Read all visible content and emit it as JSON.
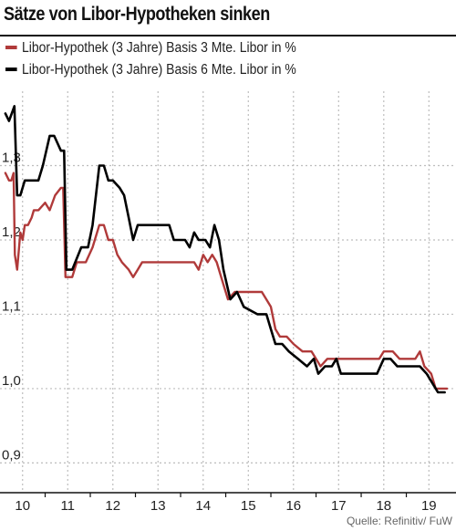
{
  "title": "Sätze von Libor-Hypotheken sinken",
  "source": "Quelle: Refinitiv/ FuW",
  "colors": {
    "series_3m": "#b03a3a",
    "series_6m": "#000000",
    "grid": "#bdbdbd",
    "axis": "#111111"
  },
  "chart_data": {
    "type": "line",
    "title": "Sätze von Libor-Hypotheken sinken",
    "xlabel": "",
    "ylabel": "",
    "xlim": [
      9.5,
      19.6
    ],
    "ylim": [
      0.86,
      1.4
    ],
    "x_ticks": [
      10,
      11,
      12,
      13,
      14,
      15,
      16,
      17,
      18,
      19
    ],
    "x_tick_labels": [
      "10",
      "11",
      "12",
      "13",
      "14",
      "15",
      "16",
      "17",
      "18",
      "19"
    ],
    "y_ticks": [
      0.9,
      1.0,
      1.1,
      1.2,
      1.3
    ],
    "y_tick_labels": [
      "0,9",
      "1,0",
      "1,1",
      "1,2",
      "1,3"
    ],
    "grid": true,
    "legend_position": "top-left",
    "series": [
      {
        "name": "Libor-Hypothek (3 Jahre) Basis 3 Mte. Libor in %",
        "color": "#b03a3a",
        "points": [
          [
            9.62,
            1.29
          ],
          [
            9.7,
            1.28
          ],
          [
            9.75,
            1.28
          ],
          [
            9.8,
            1.29
          ],
          [
            9.83,
            1.18
          ],
          [
            9.88,
            1.16
          ],
          [
            9.95,
            1.21
          ],
          [
            10.0,
            1.2
          ],
          [
            10.05,
            1.22
          ],
          [
            10.12,
            1.22
          ],
          [
            10.2,
            1.23
          ],
          [
            10.25,
            1.24
          ],
          [
            10.35,
            1.24
          ],
          [
            10.5,
            1.25
          ],
          [
            10.6,
            1.24
          ],
          [
            10.72,
            1.26
          ],
          [
            10.85,
            1.27
          ],
          [
            10.9,
            1.27
          ],
          [
            10.95,
            1.15
          ],
          [
            11.1,
            1.15
          ],
          [
            11.2,
            1.17
          ],
          [
            11.4,
            1.17
          ],
          [
            11.55,
            1.19
          ],
          [
            11.7,
            1.22
          ],
          [
            11.8,
            1.22
          ],
          [
            11.9,
            1.2
          ],
          [
            12.0,
            1.2
          ],
          [
            12.1,
            1.18
          ],
          [
            12.2,
            1.17
          ],
          [
            12.35,
            1.16
          ],
          [
            12.45,
            1.15
          ],
          [
            12.55,
            1.16
          ],
          [
            12.65,
            1.17
          ],
          [
            13.0,
            1.17
          ],
          [
            13.5,
            1.17
          ],
          [
            13.8,
            1.17
          ],
          [
            13.9,
            1.16
          ],
          [
            14.0,
            1.18
          ],
          [
            14.1,
            1.17
          ],
          [
            14.2,
            1.18
          ],
          [
            14.3,
            1.17
          ],
          [
            14.45,
            1.14
          ],
          [
            14.55,
            1.12
          ],
          [
            14.7,
            1.13
          ],
          [
            15.0,
            1.13
          ],
          [
            15.3,
            1.13
          ],
          [
            15.5,
            1.11
          ],
          [
            15.6,
            1.08
          ],
          [
            15.7,
            1.07
          ],
          [
            15.85,
            1.07
          ],
          [
            16.0,
            1.06
          ],
          [
            16.2,
            1.05
          ],
          [
            16.4,
            1.05
          ],
          [
            16.5,
            1.04
          ],
          [
            16.6,
            1.03
          ],
          [
            16.75,
            1.04
          ],
          [
            16.85,
            1.04
          ],
          [
            17.0,
            1.04
          ],
          [
            17.5,
            1.04
          ],
          [
            17.9,
            1.04
          ],
          [
            18.0,
            1.05
          ],
          [
            18.2,
            1.05
          ],
          [
            18.35,
            1.04
          ],
          [
            18.7,
            1.04
          ],
          [
            18.8,
            1.05
          ],
          [
            18.9,
            1.03
          ],
          [
            19.05,
            1.02
          ],
          [
            19.15,
            1.0
          ],
          [
            19.25,
            1.0
          ],
          [
            19.4,
            1.0
          ]
        ]
      },
      {
        "name": "Libor-Hypothek (3 Jahre) Basis 6 Mte. Libor  in %",
        "color": "#000000",
        "points": [
          [
            9.62,
            1.37
          ],
          [
            9.7,
            1.36
          ],
          [
            9.82,
            1.38
          ],
          [
            9.88,
            1.26
          ],
          [
            9.95,
            1.26
          ],
          [
            10.05,
            1.28
          ],
          [
            10.15,
            1.28
          ],
          [
            10.25,
            1.28
          ],
          [
            10.35,
            1.28
          ],
          [
            10.45,
            1.3
          ],
          [
            10.6,
            1.34
          ],
          [
            10.7,
            1.34
          ],
          [
            10.85,
            1.32
          ],
          [
            10.92,
            1.32
          ],
          [
            10.97,
            1.16
          ],
          [
            11.1,
            1.16
          ],
          [
            11.3,
            1.19
          ],
          [
            11.45,
            1.19
          ],
          [
            11.55,
            1.22
          ],
          [
            11.7,
            1.3
          ],
          [
            11.8,
            1.3
          ],
          [
            11.9,
            1.28
          ],
          [
            12.0,
            1.28
          ],
          [
            12.15,
            1.27
          ],
          [
            12.25,
            1.26
          ],
          [
            12.35,
            1.23
          ],
          [
            12.45,
            1.2
          ],
          [
            12.55,
            1.22
          ],
          [
            12.7,
            1.22
          ],
          [
            13.0,
            1.22
          ],
          [
            13.25,
            1.22
          ],
          [
            13.35,
            1.2
          ],
          [
            13.6,
            1.2
          ],
          [
            13.7,
            1.19
          ],
          [
            13.8,
            1.21
          ],
          [
            13.9,
            1.2
          ],
          [
            14.05,
            1.2
          ],
          [
            14.15,
            1.19
          ],
          [
            14.25,
            1.22
          ],
          [
            14.35,
            1.2
          ],
          [
            14.45,
            1.16
          ],
          [
            14.6,
            1.12
          ],
          [
            14.75,
            1.13
          ],
          [
            14.9,
            1.11
          ],
          [
            15.2,
            1.1
          ],
          [
            15.4,
            1.1
          ],
          [
            15.5,
            1.08
          ],
          [
            15.6,
            1.06
          ],
          [
            15.75,
            1.06
          ],
          [
            15.9,
            1.05
          ],
          [
            16.1,
            1.04
          ],
          [
            16.3,
            1.03
          ],
          [
            16.45,
            1.04
          ],
          [
            16.55,
            1.02
          ],
          [
            16.7,
            1.03
          ],
          [
            16.85,
            1.03
          ],
          [
            16.95,
            1.04
          ],
          [
            17.05,
            1.02
          ],
          [
            17.5,
            1.02
          ],
          [
            17.85,
            1.02
          ],
          [
            18.0,
            1.04
          ],
          [
            18.15,
            1.04
          ],
          [
            18.3,
            1.03
          ],
          [
            18.65,
            1.03
          ],
          [
            18.8,
            1.03
          ],
          [
            18.95,
            1.02
          ],
          [
            19.05,
            1.01
          ],
          [
            19.2,
            0.995
          ],
          [
            19.35,
            0.995
          ]
        ]
      }
    ]
  }
}
